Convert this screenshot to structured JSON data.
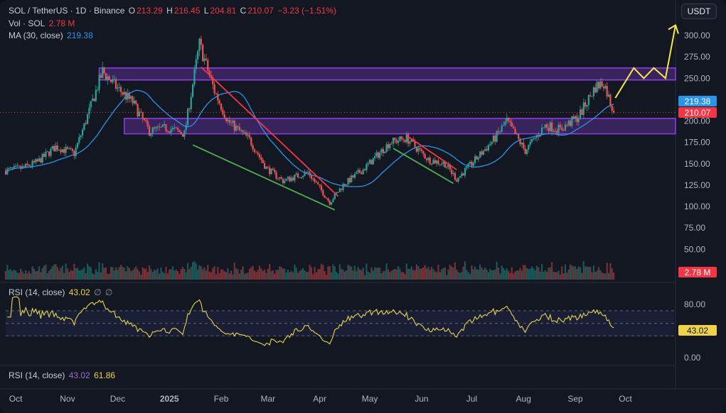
{
  "header": {
    "symbol": "SOL / TetherUS · 1D · Binance",
    "o_label": "O",
    "o_value": "213.29",
    "h_label": "H",
    "h_value": "216.45",
    "l_label": "L",
    "l_value": "204.81",
    "c_label": "C",
    "c_value": "210.07",
    "change": "−3.23 (−1.51%)",
    "vol_label": "Vol · SOL",
    "vol_value": "2.78 M",
    "ma_label": "MA (30, close)",
    "ma_value": "219.38"
  },
  "currency_button": "USDT",
  "price_tags": {
    "ma": "219.38",
    "close": "210.07",
    "volume": "2.78 M",
    "rsi": "43.02"
  },
  "rsi_panel": {
    "label": "RSI (14, close)",
    "value": "43.02",
    "icons": [
      "∅",
      "∅"
    ]
  },
  "rsi_panel2": {
    "label": "RSI (14, close)",
    "value": "43.02",
    "value2": "61.86"
  },
  "colors": {
    "up": "#26a69a",
    "down": "#ef5350",
    "ma": "#2a95e8",
    "rsi": "#e8d44d",
    "zone": "#8e3fe6",
    "red_line": "#f23645",
    "green_line": "#4caf50",
    "arrow": "#f5e84a"
  },
  "chart_data": [
    {
      "type": "candlestick",
      "title": "SOL / TetherUS · 1D · Binance",
      "x_ticks": [
        "Oct",
        "Nov",
        "Dec",
        "2025",
        "Feb",
        "Mar",
        "Apr",
        "May",
        "Jun",
        "Jul",
        "Aug",
        "Sep",
        "Oct"
      ],
      "y_ticks": [
        300,
        275,
        250,
        225,
        200,
        175,
        150,
        125,
        100,
        75,
        50
      ],
      "y_tick_labels": [
        "300.00",
        "275.00",
        "250.00",
        "225.00",
        "200.00",
        "175.00",
        "150.00",
        "125.00",
        "100.00",
        "75.00",
        "50.00"
      ],
      "ylim": [
        35,
        318
      ],
      "x_range": [
        "2024-09-25",
        "2025-10-31"
      ],
      "anchors": [
        [
          "2024-09-25",
          142
        ],
        [
          "2024-10-05",
          145
        ],
        [
          "2024-10-14",
          152
        ],
        [
          "2024-10-25",
          170
        ],
        [
          "2024-11-05",
          162
        ],
        [
          "2024-11-12",
          200
        ],
        [
          "2024-11-22",
          258
        ],
        [
          "2024-11-30",
          240
        ],
        [
          "2024-12-10",
          222
        ],
        [
          "2024-12-20",
          188
        ],
        [
          "2024-12-31",
          192
        ],
        [
          "2025-01-10",
          185
        ],
        [
          "2025-01-19",
          290
        ],
        [
          "2025-01-28",
          235
        ],
        [
          "2025-02-05",
          200
        ],
        [
          "2025-02-18",
          178
        ],
        [
          "2025-02-28",
          145
        ],
        [
          "2025-03-10",
          130
        ],
        [
          "2025-03-25",
          140
        ],
        [
          "2025-04-07",
          105
        ],
        [
          "2025-04-15",
          125
        ],
        [
          "2025-04-28",
          145
        ],
        [
          "2025-05-13",
          175
        ],
        [
          "2025-05-23",
          180
        ],
        [
          "2025-06-05",
          155
        ],
        [
          "2025-06-15",
          150
        ],
        [
          "2025-06-22",
          132
        ],
        [
          "2025-07-01",
          150
        ],
        [
          "2025-07-15",
          180
        ],
        [
          "2025-07-22",
          200
        ],
        [
          "2025-08-02",
          165
        ],
        [
          "2025-08-14",
          195
        ],
        [
          "2025-08-23",
          190
        ],
        [
          "2025-09-03",
          205
        ],
        [
          "2025-09-13",
          240
        ],
        [
          "2025-09-18",
          245
        ],
        [
          "2025-09-24",
          210
        ]
      ],
      "last_close": 210.07,
      "ma_period": 30,
      "ma_last": 219.38,
      "zones": [
        {
          "x_from": "2024-11-20",
          "x_to": "2025-10-31",
          "y_from": 248,
          "y_to": 262
        },
        {
          "x_from": "2024-12-05",
          "x_to": "2025-10-31",
          "y_from": 185,
          "y_to": 203
        }
      ],
      "trendlines": [
        {
          "color": "red",
          "from": [
            "2025-01-20",
            263
          ],
          "to": [
            "2025-04-12",
            112
          ]
        },
        {
          "color": "green",
          "from": [
            "2025-01-15",
            172
          ],
          "to": [
            "2025-04-10",
            96
          ]
        },
        {
          "color": "red",
          "from": [
            "2025-05-23",
            183
          ],
          "to": [
            "2025-06-22",
            143
          ]
        },
        {
          "color": "green",
          "from": [
            "2025-05-15",
            168
          ],
          "to": [
            "2025-06-20",
            127
          ]
        }
      ],
      "projection": [
        [
          "2025-09-25",
          227
        ],
        [
          "2025-10-06",
          262
        ],
        [
          "2025-10-12",
          250
        ],
        [
          "2025-10-18",
          262
        ],
        [
          "2025-10-25",
          250
        ],
        [
          "2025-10-31",
          312
        ]
      ]
    },
    {
      "type": "line",
      "name": "RSI (14, close)",
      "ylim": [
        0,
        100
      ],
      "y_ticks": [
        80,
        0
      ],
      "y_tick_labels": [
        "80.00",
        "0.00"
      ],
      "bands": [
        70,
        50,
        30
      ],
      "last": 43.02
    }
  ]
}
